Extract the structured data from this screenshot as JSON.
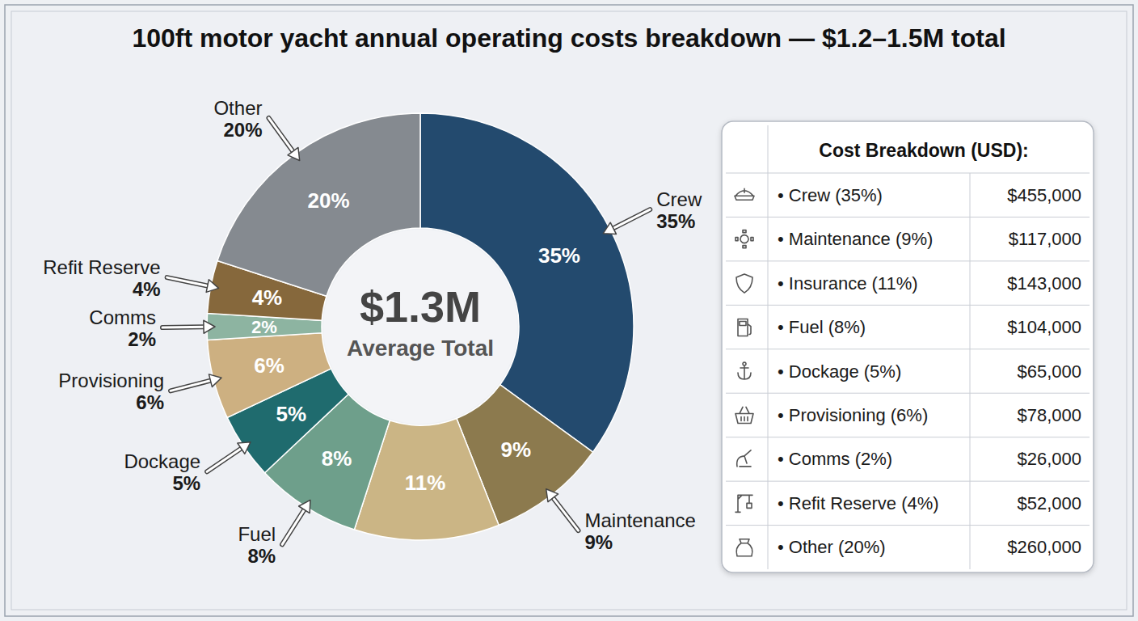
{
  "chart_data": {
    "type": "pie",
    "title": "100ft motor yacht annual operating costs breakdown — $1.2–1.5M total",
    "categories": [
      "Crew",
      "Maintenance",
      null,
      "Fuel",
      "Dockage",
      "Provisioning",
      "Comms",
      "Refit Reserve",
      "Other"
    ],
    "values": [
      35,
      9,
      11,
      8,
      5,
      6,
      2,
      4,
      20
    ],
    "value_labels": [
      "35%",
      "9%",
      "11%",
      "8%",
      "5%",
      "6%",
      "2%",
      "4%",
      "20%"
    ],
    "colors": [
      "#234a6e",
      "#8c7a4e",
      "#cbb585",
      "#6e9f8b",
      "#1f6b6e",
      "#cdb081",
      "#8db4a1",
      "#86683c",
      "#858a90"
    ],
    "data_labels": true,
    "annotations": [
      "$1.3M",
      "Average Total"
    ]
  },
  "table": {
    "title": "Cost Breakdown (USD):",
    "rows": [
      [
        "• Crew (35%)",
        "$455,000"
      ],
      [
        "• Maintenance (9%)",
        "$117,000"
      ],
      [
        "• Insurance (11%)",
        "$143,000"
      ],
      [
        "• Fuel (8%)",
        "$104,000"
      ],
      [
        "• Dockage (5%)",
        "$65,000"
      ],
      [
        "• Provisioning (6%)",
        "$78,000"
      ],
      [
        "• Comms (2%)",
        "$26,000"
      ],
      [
        "• Refit Reserve (4%)",
        "$52,000"
      ],
      [
        "• Other (20%)",
        "$260,000"
      ]
    ]
  }
}
